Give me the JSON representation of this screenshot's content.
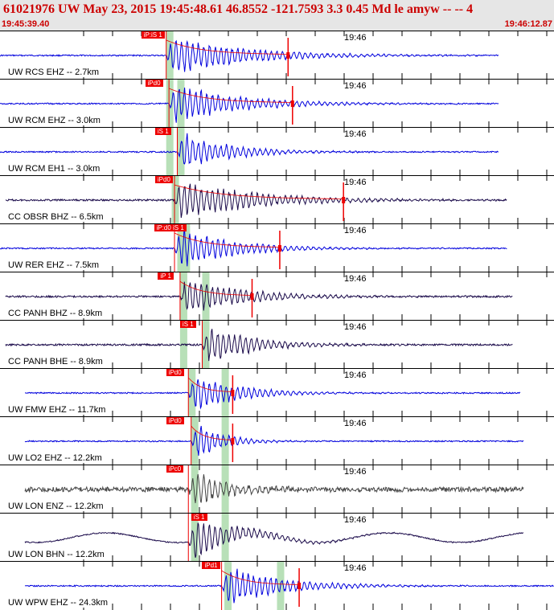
{
  "header": {
    "title": "61021976 UW May 23, 2015 19:45:48.61   46.8552 -121.7593  3.3 0.45 Md le amyw -- --    4",
    "start_time": "19:45:39.40",
    "end_time": "19:46:12.87"
  },
  "colors": {
    "header_bg": "#e6e6e6",
    "header_text": "#cc0000",
    "trace_blue": "#0000dd",
    "trace_navy": "#1a0a4a",
    "trace_gray": "#444444",
    "pick_red": "#ee0000",
    "window_green": "#b8e0b8"
  },
  "tick_label": "19:46",
  "traces": [
    {
      "label": "UW RCS EHZ -- 2.7km",
      "pick": "iP:iS 1",
      "pick_pos": 0.255,
      "onset": 0.3,
      "duration": 0.4,
      "color": "blue",
      "windows": [
        0.3
      ],
      "coda_marker": 0.52,
      "extent": [
        0.0,
        0.9
      ]
    },
    {
      "label": "UW RCM EHZ -- 3.0km",
      "pick": "iPd0",
      "pick_pos": 0.262,
      "onset": 0.305,
      "duration": 0.35,
      "color": "blue",
      "windows": [
        0.3,
        0.32
      ],
      "coda_marker": 0.528,
      "extent": [
        0.0,
        0.9
      ]
    },
    {
      "label": "UW RCM EH1 -- 3.0km",
      "pick": "iS 1",
      "pick_pos": 0.28,
      "onset": 0.32,
      "duration": 0.25,
      "color": "blue",
      "windows": [
        0.3,
        0.32
      ],
      "coda_marker": null,
      "extent": [
        0.0,
        0.9
      ]
    },
    {
      "label": "CC OBSR BHZ -- 6.5km",
      "pick": "iPd0",
      "pick_pos": 0.28,
      "onset": 0.315,
      "duration": 0.4,
      "color": "navy",
      "windows": [
        0.31
      ],
      "coda_marker": 0.62,
      "extent": [
        0.01,
        0.915
      ]
    },
    {
      "label": "UW RER EHZ -- 7.5km",
      "pick": "iP:d0 iS 1",
      "pick_pos": 0.278,
      "onset": 0.315,
      "duration": 0.3,
      "color": "blue",
      "windows": [
        0.32,
        0.33
      ],
      "coda_marker": 0.505,
      "extent": [
        0.0,
        0.915
      ]
    },
    {
      "label": "CC PANH BHZ -- 8.9km",
      "pick": "iP 1",
      "pick_pos": 0.285,
      "onset": 0.325,
      "duration": 0.3,
      "color": "navy",
      "windows": [
        0.325,
        0.365
      ],
      "coda_marker": 0.455,
      "extent": [
        0.01,
        0.925
      ]
    },
    {
      "label": "CC PANH BHE -- 8.9km",
      "pick": "iS 1",
      "pick_pos": 0.325,
      "onset": 0.365,
      "duration": 0.25,
      "color": "navy",
      "windows": [
        0.325,
        0.365
      ],
      "coda_marker": null,
      "extent": [
        0.01,
        0.925
      ]
    },
    {
      "label": "UW FMW EHZ -- 11.7km",
      "pick": "iPd0",
      "pick_pos": 0.3,
      "onset": 0.34,
      "duration": 0.25,
      "color": "blue",
      "windows": [
        0.34,
        0.4
      ],
      "coda_marker": 0.42,
      "extent": [
        0.045,
        0.94
      ]
    },
    {
      "label": "UW LO2 EHZ -- 12.2km",
      "pick": "iPd0",
      "pick_pos": 0.3,
      "onset": 0.345,
      "duration": 0.15,
      "color": "blue",
      "windows": [
        0.345,
        0.4
      ],
      "coda_marker": 0.42,
      "extent": [
        0.045,
        0.945
      ]
    },
    {
      "label": "UW LON ENZ -- 12.2km",
      "pick": "iPc0",
      "pick_pos": 0.3,
      "onset": 0.34,
      "duration": 0.2,
      "color": "gray",
      "windows": [
        0.345,
        0.4
      ],
      "coda_marker": null,
      "extent": [
        0.045,
        0.945
      ]
    },
    {
      "label": "UW LON BHN -- 12.2km",
      "pick": "iS 1",
      "pick_pos": 0.345,
      "onset": 0.34,
      "duration": 0.25,
      "color": "navy",
      "windows": [
        0.345,
        0.4
      ],
      "coda_marker": null,
      "extent": [
        0.045,
        0.945
      ]
    },
    {
      "label": "UW WPW EHZ -- 24.3km",
      "pick": "iPd1",
      "pick_pos": 0.365,
      "onset": 0.4,
      "duration": 0.3,
      "color": "blue",
      "windows": [
        0.405,
        0.5
      ],
      "coda_marker": 0.54,
      "extent": [
        0.045,
        1.0
      ]
    }
  ]
}
